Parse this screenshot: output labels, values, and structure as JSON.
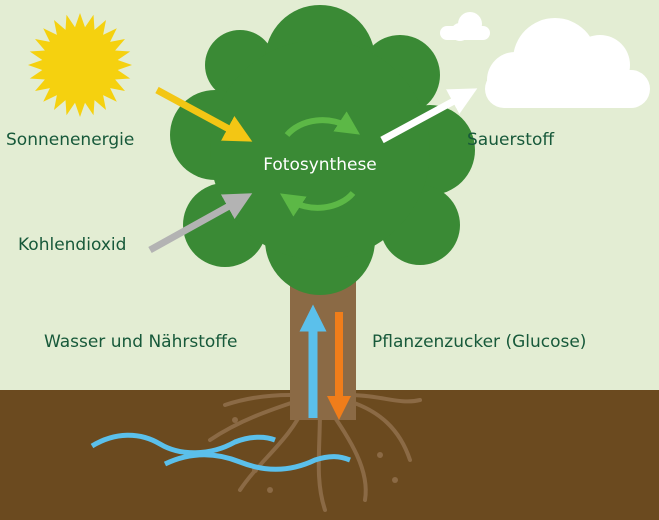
{
  "labels": {
    "sun": "Sonnenenergie",
    "process": "Fotosynthese",
    "oxygen": "Sauerstoff",
    "co2": "Kohlendioxid",
    "water": "Wasser und Nährstoffe",
    "sugar": "Pflanzenzucker (Glucose)"
  }
}
